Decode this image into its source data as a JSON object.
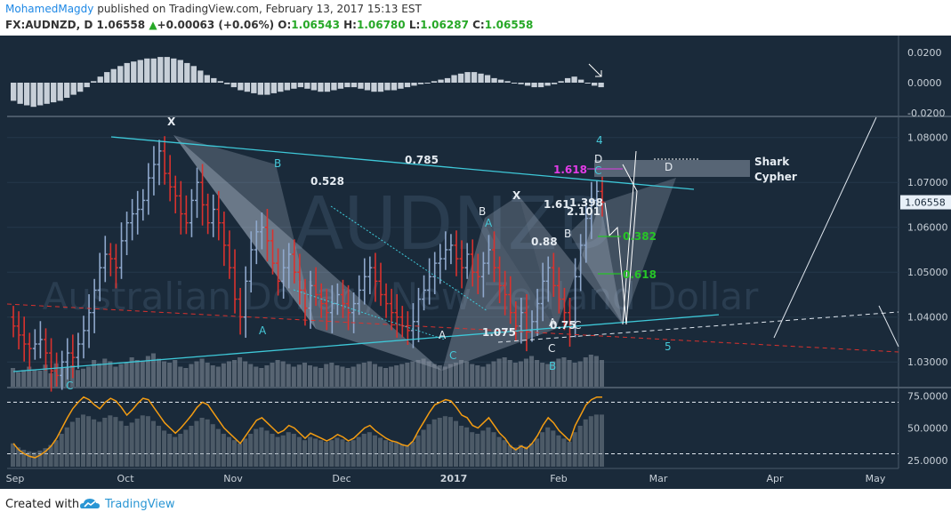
{
  "header": {
    "author": "MohamedMagdy",
    "published_text": " published on TradingView.com, February 13, 2017 15:13 EST",
    "symbol": "FX:AUDNZD, D",
    "price": "1.06558",
    "change_arrow": "▲",
    "change": "+0.00063 (+0.06%)",
    "o_label": "O:",
    "o_value": "1.06543",
    "h_label": "H:",
    "h_value": "1.06780",
    "l_label": "L:",
    "l_value": "1.06287",
    "c_label": "C:",
    "c_value": "1.06558"
  },
  "watermark": {
    "symbol": "AUDNZD",
    "description": "Australian Dollar / New Zealand Dollar"
  },
  "colors": {
    "background": "#1a2a3a",
    "bull_bar": "#8fa8cc",
    "bear_bar": "#d9322e",
    "trendline": "#3ec8d8",
    "pattern_fill": "#b8c4d4",
    "rsi_line": "#f39c12",
    "fib_green": "#27c427",
    "fib_magenta": "#e23ce6",
    "red_dashed": "#d9322e",
    "axis_text": "#c8d0d8"
  },
  "chart_data": {
    "type": "candlestick",
    "instrument": "FX:AUDNZD, D",
    "x_axis": {
      "labels": [
        "Sep",
        "Oct",
        "Nov",
        "Dec",
        "2017",
        "Feb",
        "Mar",
        "Apr",
        "May"
      ]
    },
    "main_pane": {
      "ylim": [
        1.0245,
        1.0845
      ],
      "y_ticks": [
        "1.08000",
        "1.07000",
        "1.06000",
        "1.05000",
        "1.04000",
        "1.03000"
      ],
      "last_price": "1.06558",
      "closes": [
        1.038,
        1.036,
        1.034,
        1.033,
        1.034,
        1.035,
        1.032,
        1.028,
        1.027,
        1.03,
        1.032,
        1.031,
        1.034,
        1.037,
        1.041,
        1.046,
        1.051,
        1.054,
        1.053,
        1.051,
        1.057,
        1.061,
        1.063,
        1.064,
        1.066,
        1.071,
        1.074,
        1.077,
        1.072,
        1.069,
        1.067,
        1.063,
        1.061,
        1.066,
        1.07,
        1.065,
        1.061,
        1.064,
        1.061,
        1.056,
        1.051,
        1.044,
        1.04,
        1.048,
        1.055,
        1.059,
        1.06,
        1.057,
        1.052,
        1.048,
        1.051,
        1.054,
        1.05,
        1.046,
        1.042,
        1.047,
        1.045,
        1.043,
        1.041,
        1.043,
        1.045,
        1.043,
        1.041,
        1.043,
        1.046,
        1.049,
        1.051,
        1.048,
        1.045,
        1.043,
        1.041,
        1.04,
        1.038,
        1.037,
        1.039,
        1.044,
        1.046,
        1.049,
        1.052,
        1.053,
        1.055,
        1.056,
        1.053,
        1.051,
        1.054,
        1.05,
        1.049,
        1.052,
        1.055,
        1.051,
        1.047,
        1.045,
        1.041,
        1.038,
        1.041,
        1.037,
        1.039,
        1.043,
        1.048,
        1.051,
        1.047,
        1.044,
        1.041,
        1.038,
        1.049,
        1.056,
        1.062,
        1.066,
        1.068,
        1.0656
      ]
    },
    "oscillator_pane": {
      "y_ticks": [
        "0.0200",
        "0.0000",
        "-0.0200"
      ],
      "values": [
        -0.012,
        -0.014,
        -0.015,
        -0.016,
        -0.015,
        -0.014,
        -0.013,
        -0.012,
        -0.01,
        -0.008,
        -0.006,
        -0.003,
        0.001,
        0.004,
        0.007,
        0.009,
        0.011,
        0.013,
        0.014,
        0.015,
        0.016,
        0.016,
        0.017,
        0.017,
        0.016,
        0.015,
        0.013,
        0.011,
        0.008,
        0.005,
        0.003,
        0.001,
        -0.001,
        -0.003,
        -0.005,
        -0.006,
        -0.007,
        -0.008,
        -0.008,
        -0.007,
        -0.006,
        -0.005,
        -0.004,
        -0.003,
        -0.004,
        -0.005,
        -0.006,
        -0.006,
        -0.005,
        -0.004,
        -0.003,
        -0.003,
        -0.004,
        -0.005,
        -0.006,
        -0.006,
        -0.005,
        -0.005,
        -0.004,
        -0.003,
        -0.002,
        -0.001,
        0.0,
        0.001,
        0.002,
        0.003,
        0.005,
        0.006,
        0.007,
        0.007,
        0.006,
        0.005,
        0.003,
        0.002,
        0.001,
        0.0,
        -0.001,
        -0.002,
        -0.003,
        -0.003,
        -0.002,
        -0.001,
        0.001,
        0.003,
        0.004,
        0.002,
        0.0,
        -0.002,
        -0.003
      ]
    },
    "rsi_pane": {
      "ylim": [
        20,
        80
      ],
      "y_ticks": [
        "75.0000",
        "50.0000",
        "25.0000"
      ],
      "levels": [
        70,
        30
      ],
      "values": [
        38,
        33,
        30,
        28,
        27,
        29,
        32,
        36,
        42,
        50,
        58,
        65,
        70,
        74,
        72,
        68,
        65,
        70,
        73,
        71,
        66,
        60,
        64,
        69,
        73,
        72,
        66,
        60,
        54,
        50,
        46,
        50,
        55,
        60,
        66,
        70,
        68,
        62,
        56,
        50,
        46,
        42,
        38,
        44,
        50,
        56,
        58,
        54,
        50,
        46,
        48,
        52,
        50,
        46,
        42,
        46,
        44,
        42,
        40,
        42,
        45,
        43,
        40,
        42,
        46,
        50,
        52,
        48,
        45,
        42,
        40,
        39,
        37,
        36,
        40,
        48,
        55,
        62,
        68,
        70,
        72,
        71,
        66,
        60,
        58,
        52,
        50,
        54,
        58,
        52,
        46,
        42,
        36,
        33,
        36,
        34,
        38,
        44,
        52,
        58,
        54,
        48,
        44,
        40,
        52,
        60,
        68,
        72,
        74,
        74
      ]
    },
    "volume": [
      28,
      22,
      25,
      30,
      26,
      24,
      33,
      20,
      35,
      28,
      30,
      32,
      25,
      27,
      30,
      40,
      35,
      42,
      38,
      30,
      34,
      36,
      44,
      40,
      38,
      46,
      50,
      42,
      38,
      36,
      40,
      30,
      28,
      34,
      38,
      42,
      36,
      32,
      30,
      35,
      38,
      40,
      44,
      38,
      34,
      30,
      28,
      32,
      36,
      40,
      38,
      34,
      30,
      33,
      36,
      32,
      30,
      28,
      34,
      36,
      32,
      30,
      28,
      30,
      34,
      36,
      38,
      34,
      30,
      28,
      30,
      32,
      34,
      36,
      38,
      40,
      42,
      38,
      34,
      32,
      30,
      34,
      36,
      40,
      38,
      34,
      32,
      30,
      34,
      38,
      42,
      44,
      40,
      36,
      38,
      42,
      46,
      40,
      36,
      34,
      38,
      42,
      44,
      40,
      36,
      38,
      44,
      48,
      46,
      40
    ],
    "annotations": {
      "pattern_labels": [
        "X",
        "B",
        "A",
        "C",
        "X",
        "B",
        "A",
        "C",
        "D",
        "D",
        "B",
        "4",
        "5"
      ],
      "ratios": [
        "0.785",
        "0.528",
        "1.075",
        "1.618",
        "1.61",
        "1.398",
        "2.101",
        "0.88",
        "0.75",
        "0.382",
        "0.618"
      ],
      "pattern_names": [
        "Shark",
        "Cypher"
      ],
      "small_labels": [
        "A",
        "C",
        "B"
      ]
    }
  }
}
